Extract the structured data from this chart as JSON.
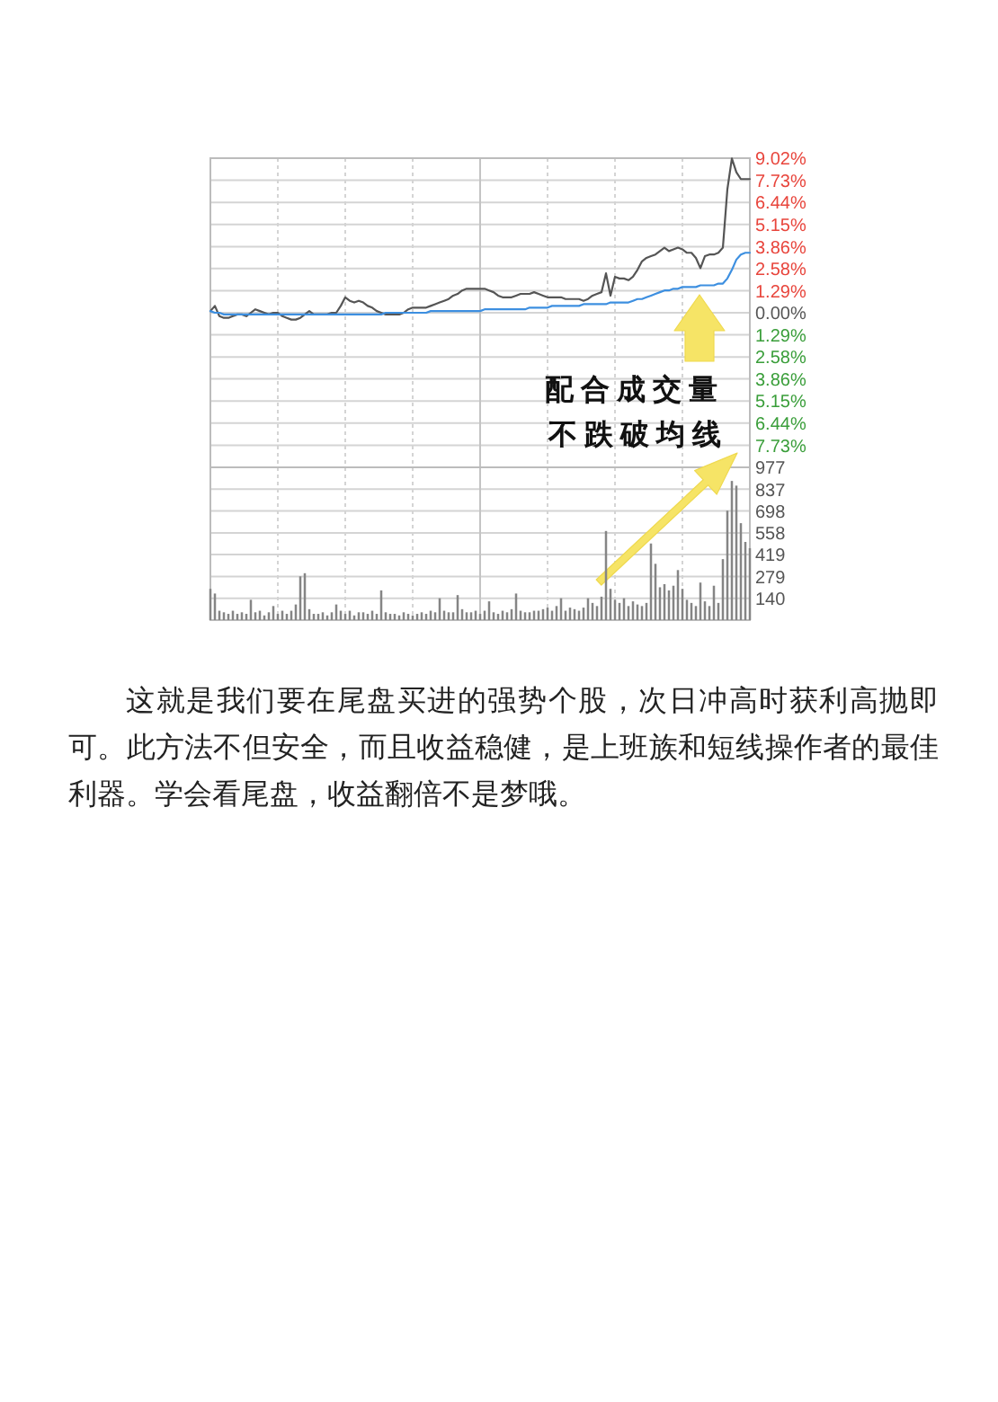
{
  "chart_data": [
    {
      "type": "line",
      "categories": [
        null,
        null,
        null,
        null,
        null,
        null,
        null,
        null,
        null,
        null,
        null,
        null,
        null,
        null,
        null,
        null,
        null,
        null,
        null,
        null,
        null,
        null,
        null,
        null,
        null,
        null,
        null,
        null,
        null,
        null,
        null,
        null,
        null,
        null,
        null,
        null,
        null,
        null,
        null,
        null,
        null,
        null,
        null,
        null,
        null,
        null,
        null,
        null,
        null,
        null,
        null,
        null,
        null,
        null,
        null,
        null,
        null,
        null,
        null,
        null,
        null,
        null,
        null,
        null,
        null,
        null,
        null,
        null,
        null,
        null,
        null,
        null,
        null,
        null,
        null,
        null,
        null,
        null,
        null,
        null,
        null,
        null,
        null,
        null,
        null,
        null,
        null,
        null,
        null,
        null,
        null,
        null,
        null,
        null,
        null,
        null,
        null,
        null,
        null,
        null,
        null,
        null,
        null,
        null,
        null,
        null,
        null,
        null,
        null,
        null,
        null,
        null,
        null,
        null,
        null,
        null,
        null,
        null,
        null,
        null,
        null
      ],
      "series": [
        {
          "color": "#555555",
          "values": [
            0.1,
            0.4,
            -0.2,
            -0.3,
            -0.3,
            -0.2,
            -0.1,
            -0.1,
            -0.2,
            0.0,
            0.2,
            0.1,
            0.0,
            -0.1,
            0.0,
            0.0,
            -0.2,
            -0.3,
            -0.4,
            -0.4,
            -0.3,
            -0.1,
            0.1,
            -0.1,
            -0.1,
            -0.1,
            -0.1,
            0.0,
            0.0,
            0.4,
            0.9,
            0.7,
            0.6,
            0.7,
            0.6,
            0.4,
            0.3,
            0.1,
            0.0,
            -0.1,
            -0.1,
            -0.1,
            -0.1,
            0.0,
            0.2,
            0.3,
            0.3,
            0.3,
            0.3,
            0.4,
            0.5,
            0.6,
            0.7,
            0.8,
            1.0,
            1.1,
            1.3,
            1.4,
            1.4,
            1.4,
            1.4,
            1.4,
            1.3,
            1.2,
            1.0,
            0.9,
            0.9,
            0.9,
            1.0,
            1.1,
            1.1,
            1.1,
            1.2,
            1.1,
            1.0,
            0.9,
            0.9,
            0.9,
            0.9,
            0.8,
            0.8,
            0.8,
            0.8,
            0.7,
            0.8,
            1.0,
            1.1,
            1.2,
            2.3,
            1.0,
            2.1,
            2.0,
            2.0,
            1.9,
            2.1,
            2.5,
            3.0,
            3.2,
            3.3,
            3.4,
            3.6,
            3.8,
            3.6,
            3.7,
            3.8,
            3.7,
            3.5,
            3.5,
            3.2,
            2.6,
            3.3,
            3.4,
            3.4,
            3.5,
            3.8,
            7.2,
            9.0,
            8.2,
            7.8,
            7.8,
            7.8
          ]
        },
        {
          "color": "#3d8fe0",
          "values": [
            0.1,
            0.0,
            0.0,
            -0.1,
            -0.1,
            -0.1,
            -0.1,
            -0.1,
            -0.1,
            -0.1,
            -0.1,
            -0.1,
            -0.1,
            -0.1,
            -0.1,
            -0.1,
            -0.1,
            -0.1,
            -0.1,
            -0.1,
            -0.1,
            -0.1,
            -0.1,
            -0.1,
            -0.1,
            -0.1,
            -0.1,
            -0.1,
            -0.1,
            -0.1,
            -0.1,
            -0.1,
            -0.1,
            -0.1,
            -0.1,
            -0.1,
            -0.1,
            -0.1,
            -0.1,
            0.0,
            0.0,
            0.0,
            0.0,
            0.0,
            0.0,
            0.0,
            0.0,
            0.0,
            0.0,
            0.1,
            0.1,
            0.1,
            0.1,
            0.1,
            0.1,
            0.1,
            0.1,
            0.1,
            0.1,
            0.1,
            0.1,
            0.2,
            0.2,
            0.2,
            0.2,
            0.2,
            0.2,
            0.2,
            0.2,
            0.2,
            0.2,
            0.3,
            0.3,
            0.3,
            0.3,
            0.3,
            0.4,
            0.4,
            0.4,
            0.4,
            0.4,
            0.4,
            0.4,
            0.5,
            0.5,
            0.5,
            0.5,
            0.5,
            0.5,
            0.6,
            0.6,
            0.6,
            0.6,
            0.6,
            0.7,
            0.8,
            0.8,
            0.9,
            1.0,
            1.1,
            1.2,
            1.3,
            1.3,
            1.4,
            1.4,
            1.5,
            1.5,
            1.5,
            1.5,
            1.6,
            1.6,
            1.6,
            1.6,
            1.7,
            1.7,
            2.0,
            2.5,
            3.1,
            3.4,
            3.5,
            3.5
          ]
        }
      ],
      "ylim": [
        -9.02,
        9.02
      ],
      "yticks": [
        {
          "value": 9.02,
          "label": "9.02%"
        },
        {
          "value": 7.73,
          "label": "7.73%"
        },
        {
          "value": 6.44,
          "label": "6.44%"
        },
        {
          "value": 5.15,
          "label": "5.15%"
        },
        {
          "value": 3.86,
          "label": "3.86%"
        },
        {
          "value": 2.58,
          "label": "2.58%"
        },
        {
          "value": 1.29,
          "label": "1.29%"
        },
        {
          "value": 0,
          "label": "0.00%"
        },
        {
          "value": -1.29,
          "label": "1.29%"
        },
        {
          "value": -2.58,
          "label": "2.58%"
        },
        {
          "value": -3.86,
          "label": "3.86%"
        },
        {
          "value": -5.15,
          "label": "5.15%"
        },
        {
          "value": -6.44,
          "label": "6.44%"
        },
        {
          "value": -7.73,
          "label": "7.73%"
        },
        {
          "value": -9.02,
          "label": null
        }
      ],
      "tick_labels": "y",
      "grid": true,
      "annotations": [
        "配合成交量",
        "不跌破均线"
      ]
    },
    {
      "type": "bar",
      "categories": [
        null,
        null,
        null,
        null,
        null,
        null,
        null,
        null,
        null,
        null,
        null,
        null,
        null,
        null,
        null,
        null,
        null,
        null,
        null,
        null,
        null,
        null,
        null,
        null,
        null,
        null,
        null,
        null,
        null,
        null,
        null,
        null,
        null,
        null,
        null,
        null,
        null,
        null,
        null,
        null,
        null,
        null,
        null,
        null,
        null,
        null,
        null,
        null,
        null,
        null,
        null,
        null,
        null,
        null,
        null,
        null,
        null,
        null,
        null,
        null,
        null,
        null,
        null,
        null,
        null,
        null,
        null,
        null,
        null,
        null,
        null,
        null,
        null,
        null,
        null,
        null,
        null,
        null,
        null,
        null,
        null,
        null,
        null,
        null,
        null,
        null,
        null,
        null,
        null,
        null,
        null,
        null,
        null,
        null,
        null,
        null,
        null,
        null,
        null,
        null,
        null,
        null,
        null,
        null,
        null,
        null,
        null,
        null,
        null,
        null,
        null,
        null,
        null,
        null,
        null,
        null,
        null,
        null,
        null,
        null,
        null
      ],
      "series": [
        {
          "color": "#858585",
          "values": [
            200,
            170,
            60,
            50,
            40,
            60,
            40,
            50,
            40,
            130,
            50,
            60,
            30,
            50,
            90,
            40,
            60,
            40,
            60,
            100,
            280,
            300,
            70,
            40,
            40,
            50,
            30,
            50,
            100,
            60,
            40,
            60,
            30,
            50,
            50,
            40,
            60,
            40,
            190,
            50,
            40,
            40,
            30,
            50,
            40,
            30,
            40,
            50,
            40,
            60,
            50,
            140,
            60,
            50,
            50,
            160,
            70,
            50,
            50,
            60,
            40,
            60,
            120,
            50,
            40,
            60,
            50,
            70,
            170,
            60,
            50,
            50,
            60,
            60,
            70,
            80,
            60,
            90,
            140,
            60,
            80,
            70,
            60,
            80,
            140,
            110,
            90,
            150,
            570,
            200,
            130,
            110,
            140,
            90,
            120,
            100,
            90,
            110,
            490,
            360,
            210,
            230,
            190,
            220,
            320,
            200,
            130,
            110,
            90,
            240,
            120,
            90,
            220,
            110,
            390,
            700,
            890,
            860,
            620,
            500,
            460
          ]
        }
      ],
      "ylim": [
        0,
        977
      ],
      "yticks": [
        140,
        279,
        419,
        558,
        698,
        837,
        977
      ],
      "tick_labels": "y",
      "grid": true,
      "annotations": [
        "这就是我们要在尾盘买进的强势个股，次日冲高时获利高抛即可。此方法不但安全，而且收益稳健，是上班族和短线操作者的最佳利器。学会看尾盘，收益翻倍不是梦哦。"
      ]
    }
  ]
}
